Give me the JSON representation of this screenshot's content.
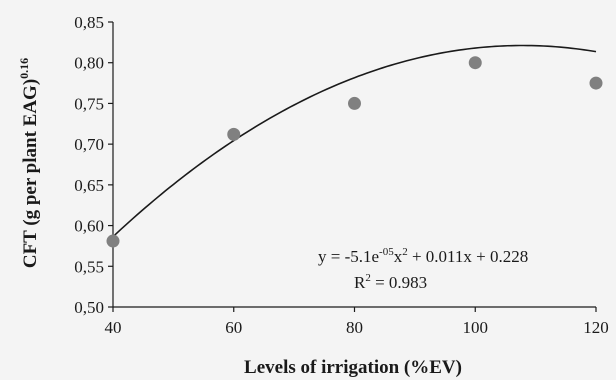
{
  "chart_data": {
    "type": "scatter",
    "title": "",
    "xlabel": "Levels of irrigation (%EV)",
    "ylabel_main": "CFT (g per plant EAG)",
    "ylabel_exp": "0.16",
    "xlim": [
      40,
      120
    ],
    "ylim": [
      0.5,
      0.85
    ],
    "x_ticks": [
      40,
      60,
      80,
      100,
      120
    ],
    "y_ticks": [
      0.5,
      0.55,
      0.6,
      0.65,
      0.7,
      0.75,
      0.8,
      0.85
    ],
    "x_tick_labels": [
      "40",
      "60",
      "80",
      "100",
      "120"
    ],
    "y_tick_labels": [
      "0,50",
      "0,55",
      "0,60",
      "0,65",
      "0,70",
      "0,75",
      "0,80",
      "0,85"
    ],
    "grid": false,
    "series": [
      {
        "x": [
          40,
          60,
          80,
          100,
          120
        ],
        "y": [
          0.581,
          0.712,
          0.75,
          0.8,
          0.775
        ]
      }
    ],
    "fit": {
      "a": -5.1e-05,
      "b": 0.011,
      "c": 0.228
    },
    "equation": {
      "line1_prefix": "y = -5.1e",
      "line1_exp1": "-05",
      "line1_mid": "x",
      "line1_exp2": "2",
      "line1_suffix": " + 0.011x + 0.228",
      "r2_prefix": "R",
      "r2_exp": "2",
      "r2_suffix": " = 0.983"
    },
    "colors": {
      "point": "#808080",
      "curve": "#1a1a1a",
      "axis": "#1a1a1a"
    }
  }
}
